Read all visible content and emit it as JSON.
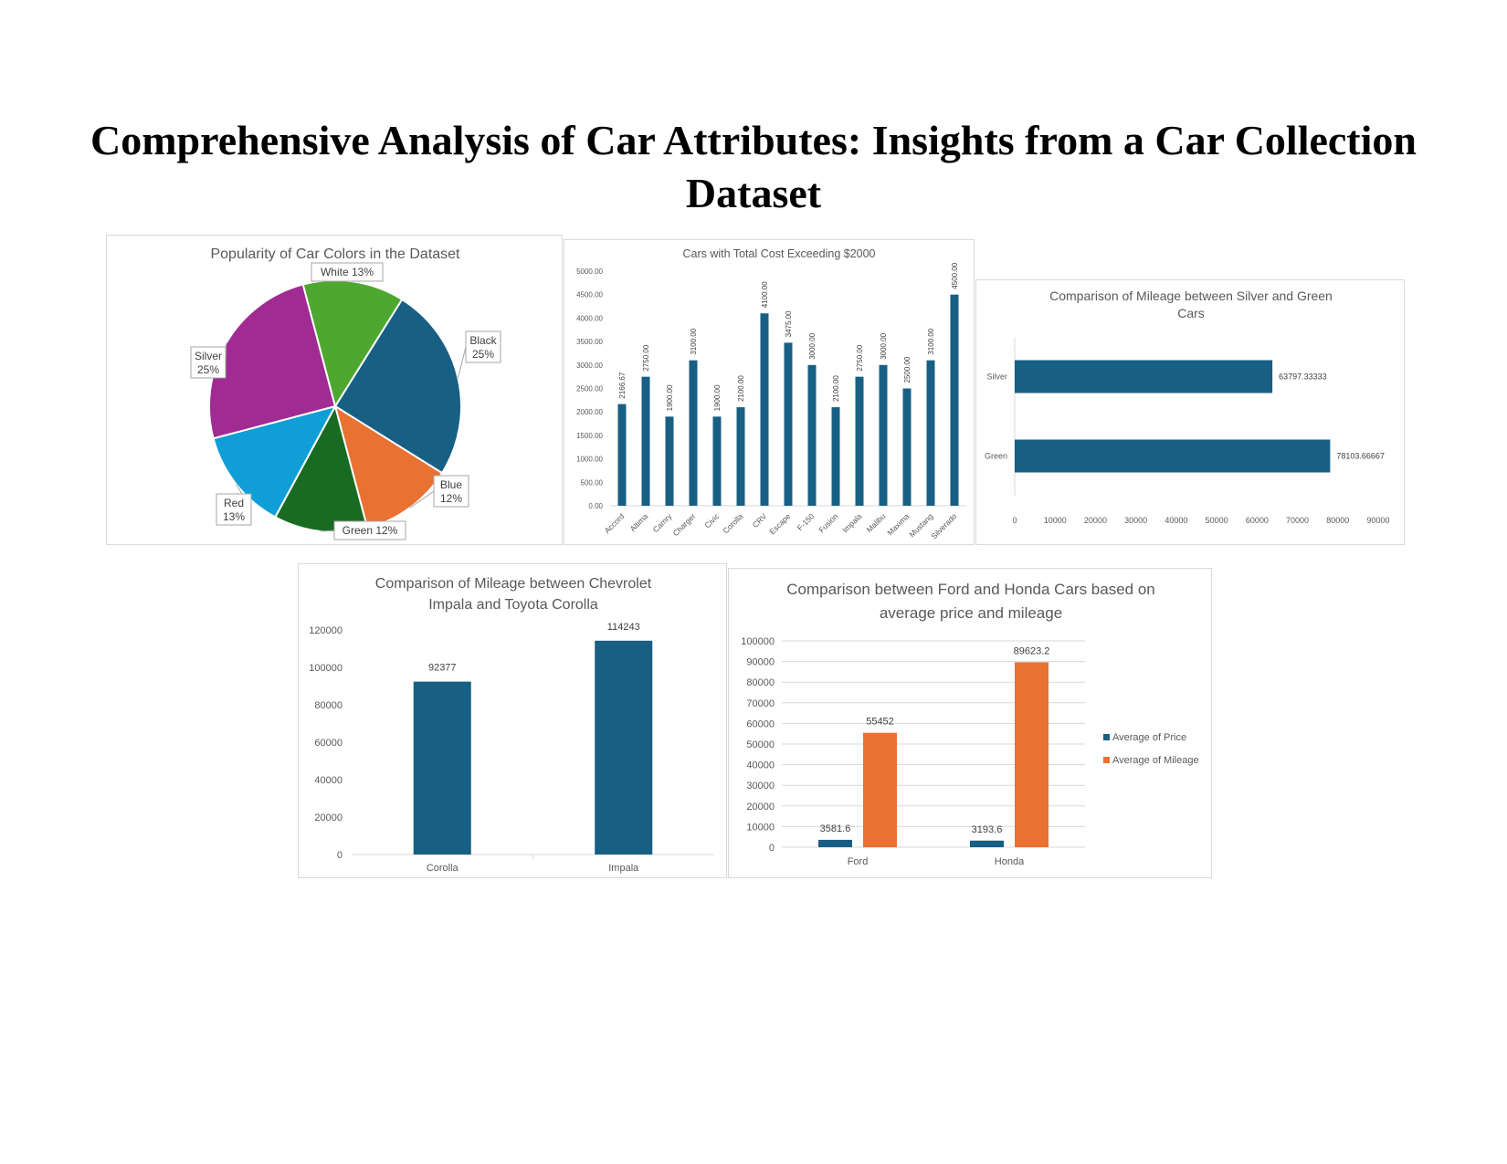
{
  "page": {
    "title": "Comprehensive Analysis of Car Attributes: Insights from a Car Collection Dataset"
  },
  "colors": {
    "primary_blue": "#185F84",
    "orange": "#E97132",
    "pie_black": "#185F84",
    "pie_blue": "#E97132",
    "pie_green": "#196B24",
    "pie_red": "#0F9ED5",
    "pie_silver": "#A02B93",
    "pie_white": "#4EA72E"
  },
  "chart_data": [
    {
      "type": "pie",
      "title": "Popularity of Car Colors in the Dataset",
      "categories": [
        "Black",
        "Blue",
        "Green",
        "Red",
        "Silver",
        "White"
      ],
      "values": [
        25,
        12,
        12,
        13,
        25,
        13
      ],
      "labels": [
        "Black 25%",
        "Blue 12%",
        "Green 12%",
        "Red 13%",
        "Silver 25%",
        "White 13%"
      ],
      "colors": [
        "#185F84",
        "#E97132",
        "#196B24",
        "#0F9ED5",
        "#A02B93",
        "#4EA72E"
      ]
    },
    {
      "type": "bar",
      "title": "Cars with Total Cost Exceeding $2000",
      "categories": [
        "Accord",
        "Altima",
        "Camry",
        "Charger",
        "Civic",
        "Corolla",
        "CRV",
        "Escape",
        "F-150",
        "Fusion",
        "Impala",
        "Malibu",
        "Maxima",
        "Mustang",
        "Silverado"
      ],
      "values": [
        2166.67,
        2750.0,
        1900.0,
        3100.0,
        1900.0,
        2100.0,
        4100.0,
        3475.0,
        3000.0,
        2100.0,
        2750.0,
        3000.0,
        2500.0,
        3100.0,
        4500.0
      ],
      "value_labels": [
        "2166.67",
        "2750.00",
        "1900.00",
        "3100.00",
        "1900.00",
        "2100.00",
        "4100.00",
        "3475.00",
        "3000.00",
        "2100.00",
        "2750.00",
        "3000.00",
        "2500.00",
        "3100.00",
        "4500.00"
      ],
      "y_ticks": [
        "0.00",
        "500.00",
        "1000.00",
        "1500.00",
        "2000.00",
        "2500.00",
        "3000.00",
        "3500.00",
        "4000.00",
        "4500.00",
        "5000.00"
      ],
      "ylim": [
        0,
        5000
      ]
    },
    {
      "type": "bar",
      "orientation": "horizontal",
      "title": "Comparison of Mileage between Silver and Green Cars",
      "categories": [
        "Silver",
        "Green"
      ],
      "values": [
        63797.33333,
        78103.66667
      ],
      "value_labels": [
        "63797.33333",
        "78103.66667"
      ],
      "x_ticks": [
        "0",
        "10000",
        "20000",
        "30000",
        "40000",
        "50000",
        "60000",
        "70000",
        "80000",
        "90000"
      ],
      "xlim": [
        0,
        90000
      ]
    },
    {
      "type": "bar",
      "title": "Comparison of Mileage between Chevrolet Impala and Toyota Corolla",
      "categories": [
        "Corolla",
        "Impala"
      ],
      "values": [
        92377,
        114243
      ],
      "value_labels": [
        "92377",
        "114243"
      ],
      "y_ticks": [
        "0",
        "20000",
        "40000",
        "60000",
        "80000",
        "100000",
        "120000"
      ],
      "ylim": [
        0,
        120000
      ]
    },
    {
      "type": "bar",
      "title": "Comparison between Ford and Honda Cars based on average price and mileage",
      "categories": [
        "Ford",
        "Honda"
      ],
      "series": [
        {
          "name": "Average of Price",
          "values": [
            3581.6,
            3193.6
          ],
          "labels": [
            "3581.6",
            "3193.6"
          ],
          "color": "#185F84"
        },
        {
          "name": "Average of Mileage",
          "values": [
            55452,
            89623.2
          ],
          "labels": [
            "55452",
            "89623.2"
          ],
          "color": "#E97132"
        }
      ],
      "y_ticks": [
        "0",
        "10000",
        "20000",
        "30000",
        "40000",
        "50000",
        "60000",
        "70000",
        "80000",
        "90000",
        "100000"
      ],
      "ylim": [
        0,
        100000
      ],
      "legend": "right",
      "grid": true
    }
  ]
}
